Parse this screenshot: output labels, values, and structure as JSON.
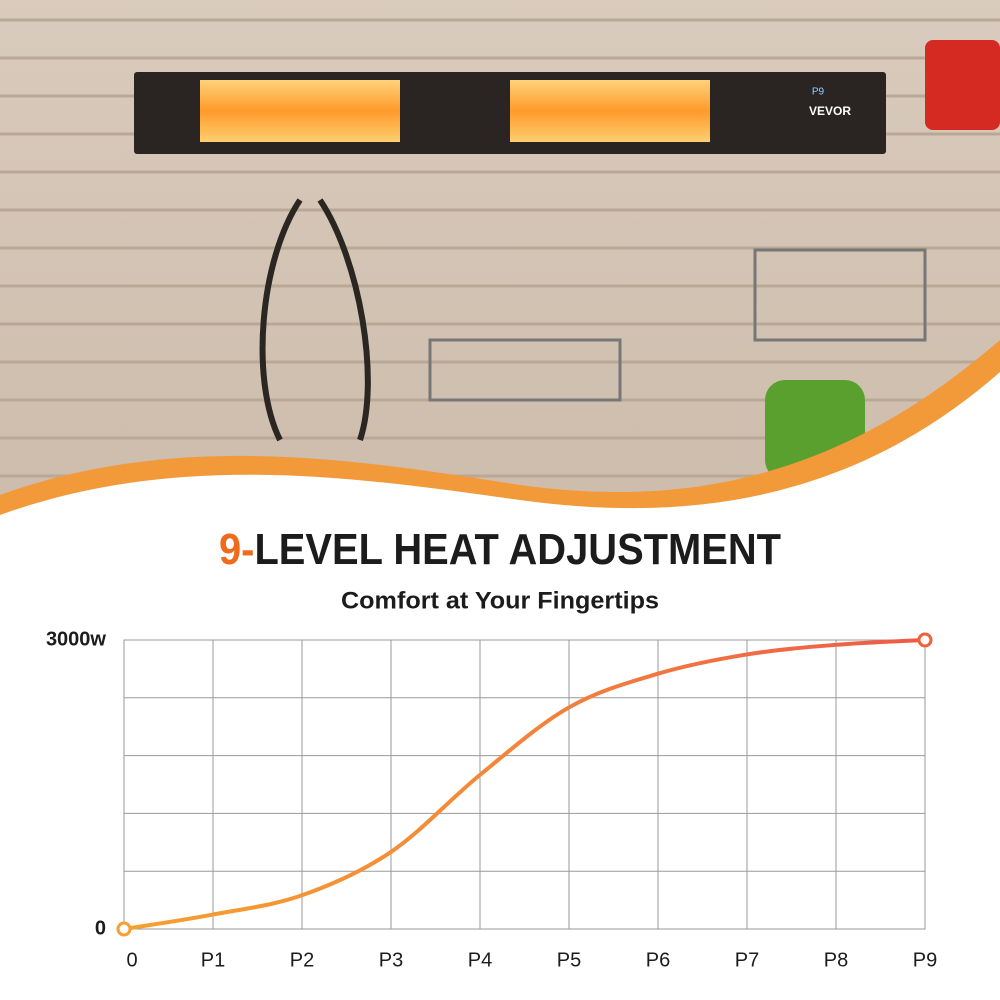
{
  "photo": {
    "brand": "VEVOR",
    "display": "P9"
  },
  "chart_data": {
    "type": "line",
    "title_highlight": "9-",
    "title": "LEVEL HEAT ADJUSTMENT",
    "subtitle": "Comfort at Your Fingertips",
    "categories": [
      "0",
      "P1",
      "P2",
      "P3",
      "P4",
      "P5",
      "P6",
      "P7",
      "P8",
      "P9"
    ],
    "series": [
      {
        "color": "#f0603a",
        "values": [
          0,
          150,
          350,
          800,
          1600,
          2300,
          2650,
          2850,
          2950,
          3000
        ]
      }
    ],
    "ylim": [
      0,
      3000
    ],
    "yticks": [
      0,
      {
        "value": 3000,
        "label": "3000w"
      }
    ],
    "ygrid": [
      600,
      1200,
      1800,
      2400
    ],
    "grid": true
  }
}
